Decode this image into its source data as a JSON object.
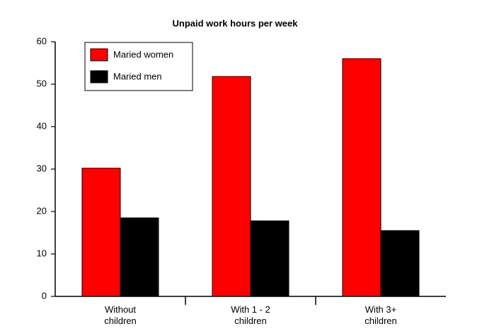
{
  "chart_data": {
    "type": "bar",
    "title": "Unpaid work hours per week",
    "categories": [
      "Without children",
      "With 1 - 2 children",
      "With 3+ children"
    ],
    "series": [
      {
        "name": "Maried women",
        "color": "#ff0000",
        "values": [
          30.2,
          51.8,
          56
        ]
      },
      {
        "name": "Maried men",
        "color": "#000000",
        "values": [
          18.5,
          17.8,
          15.5
        ]
      }
    ],
    "ylim": [
      0,
      60
    ],
    "yticks": [
      0,
      10,
      20,
      30,
      40,
      50,
      60
    ],
    "grid": false,
    "legend": "top-left"
  }
}
